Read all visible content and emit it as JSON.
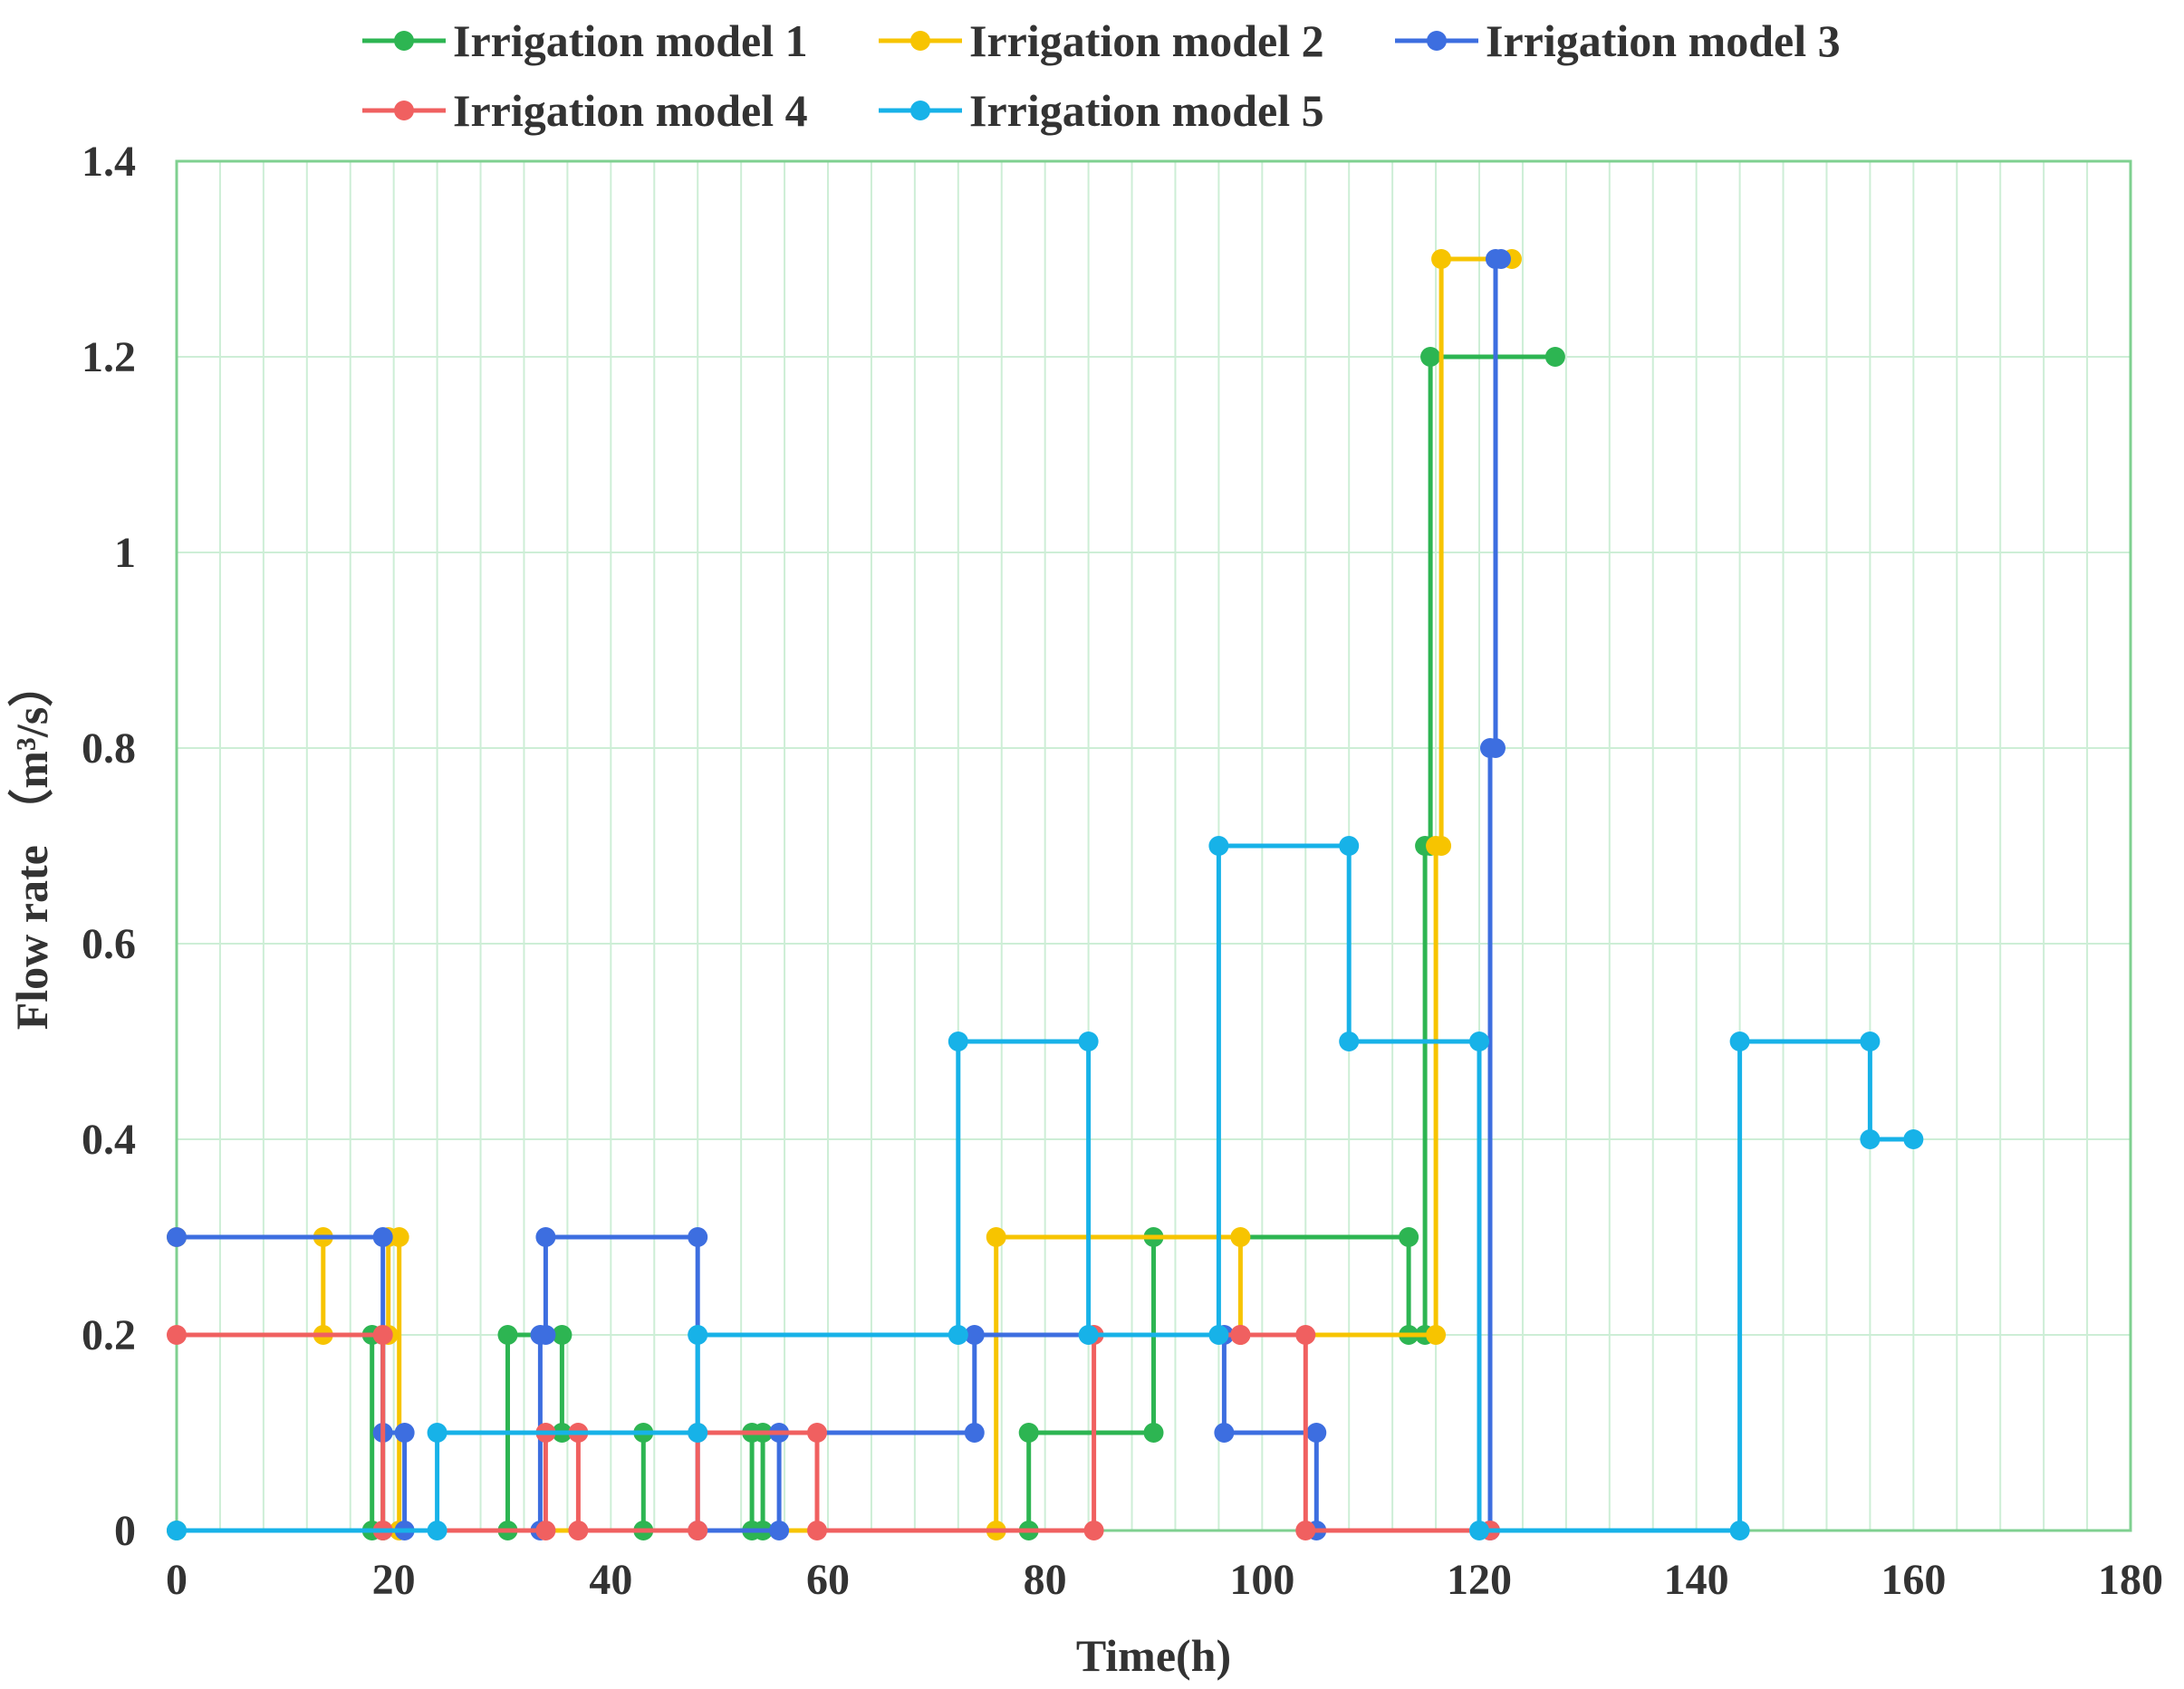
{
  "chart_data": {
    "type": "line",
    "step": true,
    "title": "",
    "xlabel": "Time(h)",
    "ylabel_main": "Flow rate",
    "ylabel_unit": "（m³/s）",
    "xlim": [
      0,
      180
    ],
    "ylim": [
      0,
      1.4
    ],
    "x_ticks": [
      0,
      20,
      40,
      60,
      80,
      100,
      120,
      140,
      160,
      180
    ],
    "y_ticks": [
      0,
      0.2,
      0.4,
      0.6,
      0.8,
      1,
      1.2,
      1.4
    ],
    "y_tick_labels": [
      "0",
      "0.2",
      "0.4",
      "0.6",
      "0.8",
      "1",
      "1.2",
      "1.4"
    ],
    "x_tick_labels": [
      "0",
      "20",
      "40",
      "60",
      "80",
      "100",
      "120",
      "140",
      "160",
      "180"
    ],
    "grid": true,
    "legend_position": "top",
    "series": [
      {
        "name": "Irrigation model 1",
        "color": "#2db552",
        "points": [
          [
            0,
            0
          ],
          [
            18,
            0
          ],
          [
            18,
            0.2
          ],
          [
            19,
            0.2
          ],
          [
            19,
            0
          ],
          [
            30.5,
            0
          ],
          [
            30.5,
            0.2
          ],
          [
            35.5,
            0.2
          ],
          [
            35.5,
            0.1
          ],
          [
            43,
            0.1
          ],
          [
            43,
            0
          ],
          [
            53,
            0
          ],
          [
            53,
            0.1
          ],
          [
            54,
            0.1
          ],
          [
            54,
            0
          ],
          [
            78.5,
            0
          ],
          [
            78.5,
            0.1
          ],
          [
            90,
            0.1
          ],
          [
            90,
            0.3
          ],
          [
            113.5,
            0.3
          ],
          [
            113.5,
            0.2
          ],
          [
            115,
            0.2
          ],
          [
            115,
            0.7
          ],
          [
            115.5,
            0.7
          ],
          [
            115.5,
            1.2
          ],
          [
            127,
            1.2
          ]
        ]
      },
      {
        "name": "Irrigation model 2",
        "color": "#f7c400",
        "points": [
          [
            0,
            0.3
          ],
          [
            13.5,
            0.3
          ],
          [
            13.5,
            0.2
          ],
          [
            19.5,
            0.2
          ],
          [
            19.5,
            0.3
          ],
          [
            20.5,
            0.3
          ],
          [
            20.5,
            0
          ],
          [
            75.5,
            0
          ],
          [
            75.5,
            0.3
          ],
          [
            98,
            0.3
          ],
          [
            98,
            0.2
          ],
          [
            116,
            0.2
          ],
          [
            116,
            0.7
          ],
          [
            116.5,
            0.7
          ],
          [
            116.5,
            1.3
          ],
          [
            123,
            1.3
          ]
        ]
      },
      {
        "name": "Irrigation model 3",
        "color": "#3d6ee0",
        "points": [
          [
            0,
            0.3
          ],
          [
            19,
            0.3
          ],
          [
            19,
            0.1
          ],
          [
            21,
            0.1
          ],
          [
            21,
            0
          ],
          [
            33.5,
            0
          ],
          [
            33.5,
            0.2
          ],
          [
            34,
            0.2
          ],
          [
            34,
            0.3
          ],
          [
            48,
            0.3
          ],
          [
            48,
            0
          ],
          [
            55.5,
            0
          ],
          [
            55.5,
            0.1
          ],
          [
            73.5,
            0.1
          ],
          [
            73.5,
            0.2
          ],
          [
            96.5,
            0.2
          ],
          [
            96.5,
            0.1
          ],
          [
            105,
            0.1
          ],
          [
            105,
            0
          ],
          [
            121,
            0
          ],
          [
            121,
            0.8
          ],
          [
            121.5,
            0.8
          ],
          [
            121.5,
            1.3
          ],
          [
            122,
            1.3
          ]
        ]
      },
      {
        "name": "Irrigation model 4",
        "color": "#f06060",
        "points": [
          [
            0,
            0.2
          ],
          [
            19,
            0.2
          ],
          [
            19,
            0
          ],
          [
            34,
            0
          ],
          [
            34,
            0.1
          ],
          [
            37,
            0.1
          ],
          [
            37,
            0
          ],
          [
            48,
            0
          ],
          [
            48,
            0.1
          ],
          [
            59,
            0.1
          ],
          [
            59,
            0
          ],
          [
            84.5,
            0
          ],
          [
            84.5,
            0.2
          ],
          [
            98,
            0.2
          ],
          [
            98,
            0.2
          ],
          [
            104,
            0.2
          ],
          [
            104,
            0
          ],
          [
            121,
            0
          ]
        ]
      },
      {
        "name": "Irrigation model 5",
        "color": "#17b2e8",
        "points": [
          [
            0,
            0
          ],
          [
            24,
            0
          ],
          [
            24,
            0.1
          ],
          [
            48,
            0.1
          ],
          [
            48,
            0.2
          ],
          [
            72,
            0.2
          ],
          [
            72,
            0.5
          ],
          [
            84,
            0.5
          ],
          [
            84,
            0.2
          ],
          [
            96,
            0.2
          ],
          [
            96,
            0.7
          ],
          [
            108,
            0.7
          ],
          [
            108,
            0.5
          ],
          [
            120,
            0.5
          ],
          [
            120,
            0
          ],
          [
            144,
            0
          ],
          [
            144,
            0.5
          ],
          [
            156,
            0.5
          ],
          [
            156,
            0.4
          ],
          [
            160,
            0.4
          ]
        ]
      }
    ]
  }
}
